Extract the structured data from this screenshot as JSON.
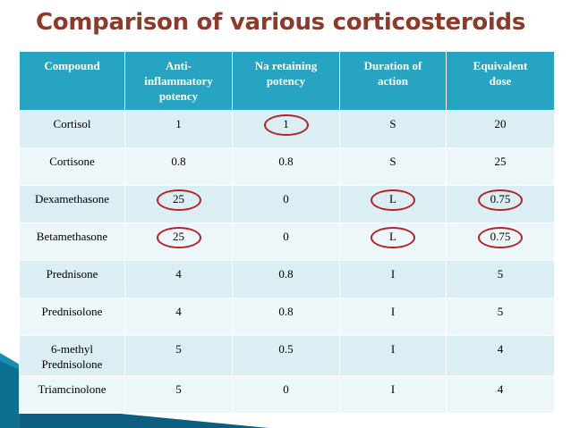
{
  "slide": {
    "title": "Comparison of various corticosteroids"
  },
  "table": {
    "headers": [
      "Compound",
      "Anti-\ninflammatory\npotency",
      "Na retaining\npotency",
      "Duration of\naction",
      "Equivalent\ndose"
    ],
    "rows": [
      [
        "Cortisol",
        "1",
        "1",
        "S",
        "20"
      ],
      [
        "Cortisone",
        "0.8",
        "0.8",
        "S",
        "25"
      ],
      [
        "Dexamethasone",
        "25",
        "0",
        "L",
        "0.75"
      ],
      [
        "Betamethasone",
        "25",
        "0",
        "L",
        "0.75"
      ],
      [
        "Prednisone",
        "4",
        "0.8",
        "I",
        "5"
      ],
      [
        "Prednisolone",
        "4",
        "0.8",
        "I",
        "5"
      ],
      [
        "6-methyl\nPrednisolone",
        "5",
        "0.5",
        "I",
        "4"
      ],
      [
        "Triamcinolone",
        "5",
        "0",
        "I",
        "4"
      ]
    ]
  },
  "colors": {
    "title": "#8e3a2a",
    "header_bg": "#27a4c1",
    "row_bg": "#dbeef4",
    "row_alt_bg": "#edf7fa",
    "highlight_circle": "#b2232a",
    "decoration": "#1a8db3"
  }
}
